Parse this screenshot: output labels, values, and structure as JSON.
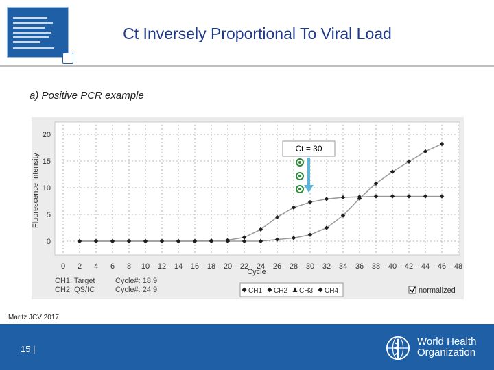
{
  "slide": {
    "title": "Ct Inversely Proportional To Viral Load",
    "subtitle": "a) Positive PCR example",
    "citation": "Maritz JCV 2017",
    "page_number": "15 |",
    "org_line1": "World Health",
    "org_line2": "Organization"
  },
  "chart_data": {
    "type": "line",
    "title": "",
    "xlabel": "Cycle",
    "ylabel": "Fluorescence Intensity",
    "xlim": [
      0,
      48
    ],
    "ylim": [
      0,
      20
    ],
    "x_ticks": [
      "0",
      "2",
      "4",
      "6",
      "8",
      "10",
      "12",
      "14",
      "16",
      "18",
      "20",
      "22",
      "24",
      "26",
      "28",
      "30",
      "32",
      "34",
      "36",
      "38",
      "40",
      "42",
      "44",
      "46",
      "48"
    ],
    "y_ticks": [
      "0",
      "5",
      "10",
      "15",
      "20"
    ],
    "grid": true,
    "legend_position": "bottom",
    "legend": [
      "CH1",
      "CH2",
      "CH3",
      "CH4"
    ],
    "normalized_label": "normalized",
    "channel_info": {
      "ch1_label": "CH1: Target",
      "ch2_label": "CH2: QS/IC",
      "ch1_cycle": "Cycle#: 18.9",
      "ch2_cycle": "Cycle#: 24.9"
    },
    "annotation": "Ct = 30",
    "series": [
      {
        "name": "CH2 (QS/IC)",
        "x": [
          2,
          4,
          6,
          8,
          10,
          12,
          14,
          16,
          18,
          20,
          22,
          24,
          26,
          28,
          30,
          32,
          34,
          36,
          38,
          40,
          42,
          44,
          46
        ],
        "values": [
          0,
          0,
          0,
          0,
          0,
          0,
          0,
          0,
          0.1,
          0.2,
          0.7,
          2.2,
          4.5,
          6.3,
          7.3,
          7.9,
          8.2,
          8.3,
          8.4,
          8.4,
          8.4,
          8.4,
          8.4
        ]
      },
      {
        "name": "CH1 (Target)",
        "x": [
          2,
          4,
          6,
          8,
          10,
          12,
          14,
          16,
          18,
          20,
          22,
          24,
          26,
          28,
          30,
          32,
          34,
          36,
          38,
          40,
          42,
          44,
          46
        ],
        "values": [
          0,
          0,
          0,
          0,
          0,
          0,
          0,
          0,
          0,
          0,
          0,
          0,
          0.3,
          0.6,
          1.2,
          2.5,
          4.8,
          8.0,
          10.8,
          13.0,
          14.9,
          16.8,
          18.2
        ]
      }
    ]
  },
  "colors": {
    "brand_blue": "#1f5fa6",
    "title_blue": "#1f3a8a",
    "series_line": "#9a9a9a",
    "marker": "#1e1e1e",
    "annotation_arrow": "#5ab5d8",
    "virus": "#2d8a3a"
  }
}
